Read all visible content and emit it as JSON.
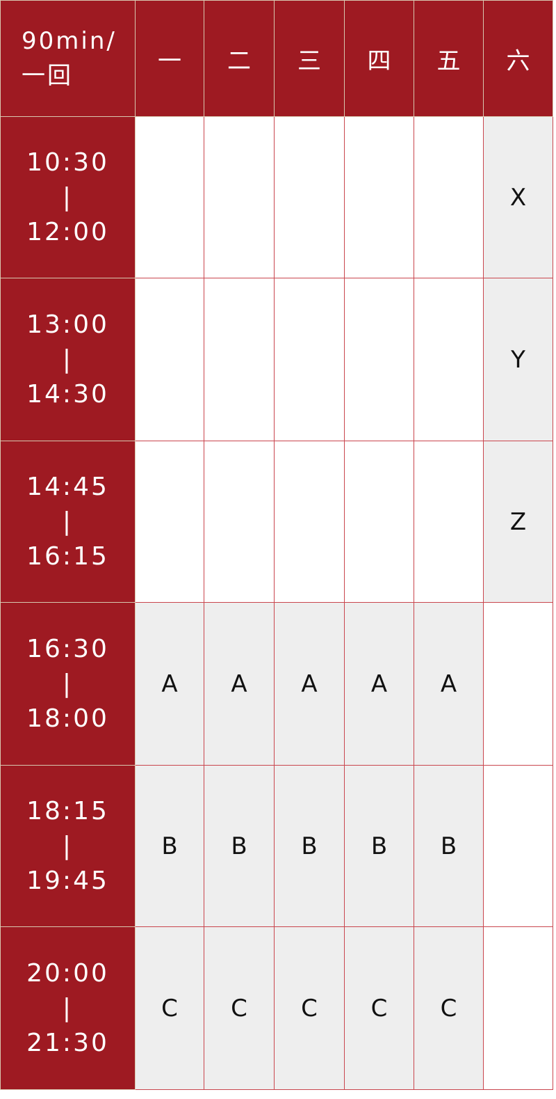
{
  "header": {
    "corner_line1": "90min/",
    "corner_line2": "一回",
    "days": [
      "一",
      "二",
      "三",
      "四",
      "五",
      "六"
    ]
  },
  "rows": [
    {
      "start": "10:30",
      "sep": "|",
      "end": "12:00",
      "cells": [
        "",
        "",
        "",
        "",
        "",
        "X"
      ]
    },
    {
      "start": "13:00",
      "sep": "|",
      "end": "14:30",
      "cells": [
        "",
        "",
        "",
        "",
        "",
        "Y"
      ]
    },
    {
      "start": "14:45",
      "sep": "|",
      "end": "16:15",
      "cells": [
        "",
        "",
        "",
        "",
        "",
        "Z"
      ]
    },
    {
      "start": "16:30",
      "sep": "|",
      "end": "18:00",
      "cells": [
        "A",
        "A",
        "A",
        "A",
        "A",
        ""
      ]
    },
    {
      "start": "18:15",
      "sep": "|",
      "end": "19:45",
      "cells": [
        "B",
        "B",
        "B",
        "B",
        "B",
        ""
      ]
    },
    {
      "start": "20:00",
      "sep": "|",
      "end": "21:30",
      "cells": [
        "C",
        "C",
        "C",
        "C",
        "C",
        ""
      ]
    }
  ],
  "colors": {
    "header_bg": "#9e1a22",
    "active_cell_bg": "#eeeeee",
    "grid": "#c9454d"
  }
}
